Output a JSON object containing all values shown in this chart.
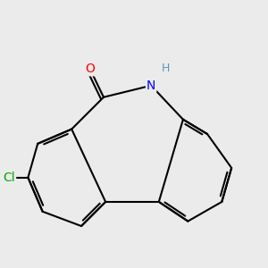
{
  "bg_color": "#ebebeb",
  "bond_color": "#000000",
  "bond_width": 1.5,
  "atom_colors": {
    "O": "#ff0000",
    "N": "#0000ff",
    "H": "#5a9ab0",
    "Cl": "#00aa00"
  },
  "font_size": 10,
  "figsize": [
    3.0,
    3.0
  ],
  "dpi": 100
}
